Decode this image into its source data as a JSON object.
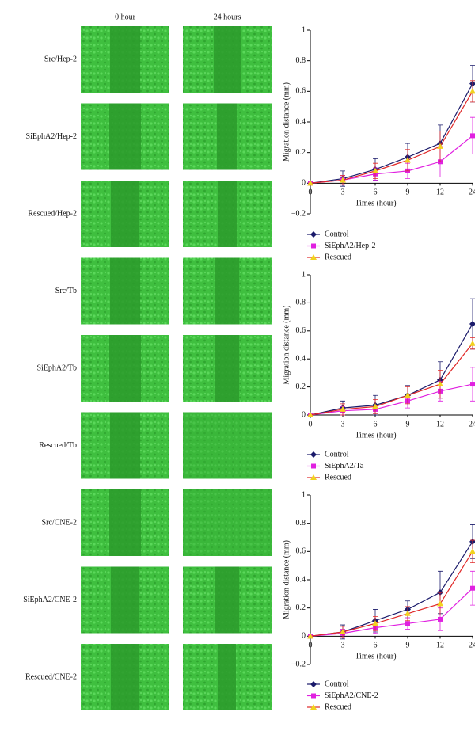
{
  "panel": {
    "column_headers": [
      "0 hour",
      "24 hours"
    ],
    "row_labels": [
      "Src/Hep-2",
      "SiEphA2/Hep-2",
      "Rescued/Hep-2",
      "Src/Tb",
      "SiEphA2/Tb",
      "Rescued/Tb",
      "Src/CNE-2",
      "SiEphA2/CNE-2",
      "Rescued/CNE-2"
    ]
  },
  "chart_data": [
    {
      "type": "line",
      "xlabel": "Times (hour)",
      "ylabel": "Migration distance (mm)",
      "categories": [
        "0",
        "3",
        "6",
        "9",
        "12",
        "24"
      ],
      "ylim": [
        -0.2,
        1
      ],
      "yticks": [
        {
          "value": -0.2,
          "label": "−0.2"
        },
        0,
        0.2,
        0.4,
        0.6,
        0.8,
        1
      ],
      "series": [
        {
          "name": "Control",
          "color": "#1b1b6b",
          "marker": "diamond",
          "marker_color": "#1b1b6b",
          "values": [
            0,
            0.03,
            0.09,
            0.17,
            0.26,
            0.65
          ],
          "errors": [
            0,
            0.05,
            0.07,
            0.09,
            0.12,
            0.12
          ]
        },
        {
          "name": "SiEphA2/Hep-2",
          "color": "#e020e0",
          "marker": "square",
          "marker_color": "#e020e0",
          "values": [
            0,
            0.02,
            0.06,
            0.08,
            0.14,
            0.31
          ],
          "errors": [
            0,
            0.03,
            0.04,
            0.05,
            0.1,
            0.12
          ]
        },
        {
          "name": "Rescued",
          "color": "#e02828",
          "marker": "triangle",
          "marker_color": "#f2d21e",
          "values": [
            0,
            0.02,
            0.08,
            0.15,
            0.24,
            0.6
          ],
          "errors": [
            0,
            0.03,
            0.05,
            0.07,
            0.1,
            0.07
          ]
        }
      ]
    },
    {
      "type": "line",
      "xlabel": "Times (hour)",
      "ylabel": "Migration distance (mm)",
      "categories": [
        "0",
        "3",
        "6",
        "9",
        "12",
        "24"
      ],
      "ylim": [
        0,
        1
      ],
      "yticks": [
        0,
        0.2,
        0.4,
        0.6,
        0.8,
        1
      ],
      "series": [
        {
          "name": "Control",
          "color": "#1b1b6b",
          "marker": "diamond",
          "marker_color": "#1b1b6b",
          "values": [
            0,
            0.05,
            0.07,
            0.14,
            0.25,
            0.65
          ],
          "errors": [
            0,
            0.05,
            0.07,
            0.07,
            0.13,
            0.18
          ]
        },
        {
          "name": "SiEphA2/Ta",
          "color": "#e020e0",
          "marker": "square",
          "marker_color": "#e020e0",
          "values": [
            0,
            0.03,
            0.04,
            0.1,
            0.17,
            0.22
          ],
          "errors": [
            0,
            0.03,
            0.03,
            0.05,
            0.07,
            0.12
          ]
        },
        {
          "name": "Rescued",
          "color": "#e02828",
          "marker": "triangle",
          "marker_color": "#f2d21e",
          "values": [
            0,
            0.04,
            0.06,
            0.14,
            0.22,
            0.51
          ],
          "errors": [
            0,
            0.04,
            0.05,
            0.06,
            0.1,
            0.04
          ]
        }
      ]
    },
    {
      "type": "line",
      "xlabel": "Times (hour)",
      "ylabel": "Migration distance (mm)",
      "categories": [
        "0",
        "3",
        "6",
        "9",
        "12",
        "24"
      ],
      "ylim": [
        -0.2,
        1
      ],
      "yticks": [
        {
          "value": -0.2,
          "label": "−0.2"
        },
        0,
        0.2,
        0.4,
        0.6,
        0.8,
        1
      ],
      "series": [
        {
          "name": "Control",
          "color": "#1b1b6b",
          "marker": "diamond",
          "marker_color": "#1b1b6b",
          "values": [
            0,
            0.03,
            0.11,
            0.19,
            0.31,
            0.67
          ],
          "errors": [
            0,
            0.05,
            0.08,
            0.06,
            0.15,
            0.12
          ]
        },
        {
          "name": "SiEphA2/CNE-2",
          "color": "#e020e0",
          "marker": "square",
          "marker_color": "#e020e0",
          "values": [
            0,
            0.02,
            0.06,
            0.09,
            0.12,
            0.34
          ],
          "errors": [
            0,
            0.03,
            0.04,
            0.04,
            0.08,
            0.12
          ]
        },
        {
          "name": "Rescued",
          "color": "#e02828",
          "marker": "triangle",
          "marker_color": "#f2d21e",
          "values": [
            0,
            0.03,
            0.09,
            0.16,
            0.23,
            0.6
          ],
          "errors": [
            0,
            0.04,
            0.05,
            0.05,
            0.08,
            0.08
          ]
        }
      ]
    }
  ]
}
